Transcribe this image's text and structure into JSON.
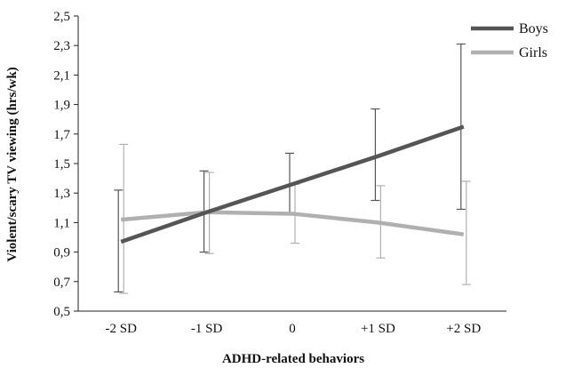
{
  "chart_data": {
    "type": "line",
    "xlabel": "ADHD-related behaviors",
    "ylabel": "Violent/scary TV viewing (hrs/wk)",
    "categories": [
      "-2 SD",
      "-1 SD",
      "0",
      "+1 SD",
      "+2 SD"
    ],
    "ylim": [
      0.5,
      2.5
    ],
    "yticks": [
      "0,5",
      "0,7",
      "0,9",
      "1,1",
      "1,3",
      "1,5",
      "1,7",
      "1,9",
      "2,1",
      "2,3",
      "2,5"
    ],
    "yticks_values": [
      0.5,
      0.7,
      0.9,
      1.1,
      1.3,
      1.5,
      1.7,
      1.9,
      2.1,
      2.3,
      2.5
    ],
    "grid": false,
    "legend_position": "top-right",
    "series": [
      {
        "name": "Boys",
        "color": "#555555",
        "values": [
          0.97,
          1.17,
          1.36,
          1.55,
          1.75
        ],
        "error_low": [
          0.63,
          0.9,
          1.16,
          1.25,
          1.19
        ],
        "error_high": [
          1.32,
          1.45,
          1.57,
          1.87,
          2.31
        ]
      },
      {
        "name": "Girls",
        "color": "#b0b0b0",
        "values": [
          1.12,
          1.17,
          1.16,
          1.1,
          1.02
        ],
        "error_low": [
          0.62,
          0.89,
          0.96,
          0.86,
          0.68
        ],
        "error_high": [
          1.63,
          1.44,
          1.36,
          1.35,
          1.38
        ]
      }
    ]
  }
}
